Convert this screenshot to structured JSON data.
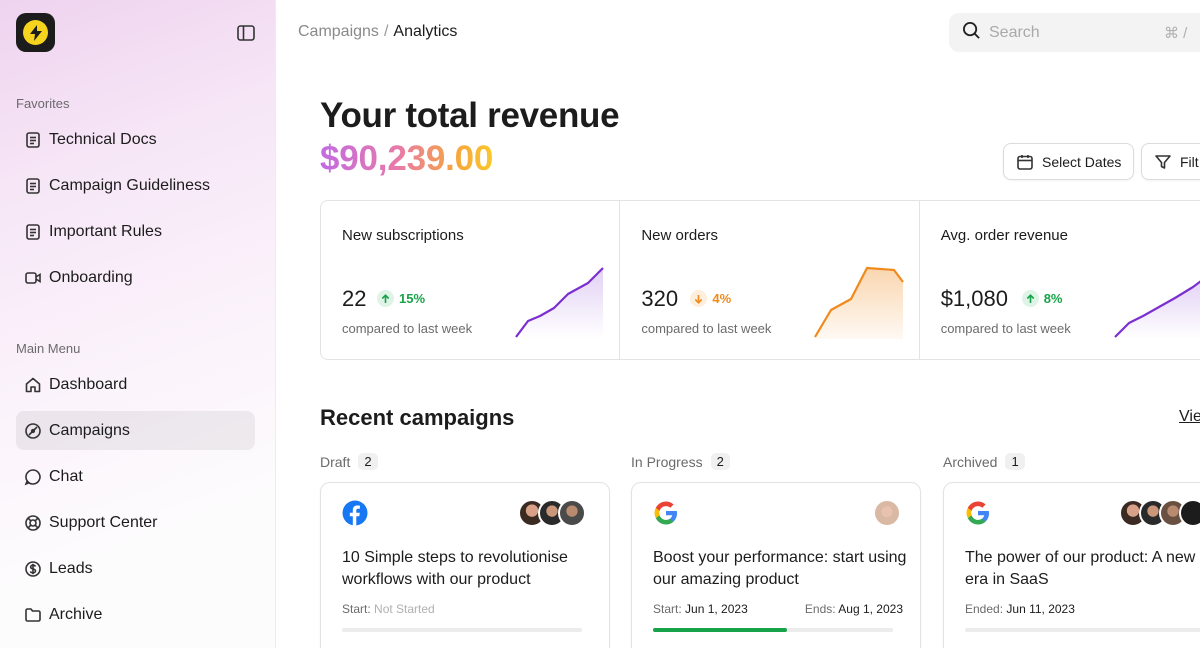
{
  "sidebar": {
    "favorites_label": "Favorites",
    "favorites": [
      {
        "label": "Technical Docs",
        "icon": "document-icon"
      },
      {
        "label": "Campaign Guideliness",
        "icon": "document-icon"
      },
      {
        "label": "Important Rules",
        "icon": "document-icon"
      },
      {
        "label": "Onboarding",
        "icon": "video-icon"
      }
    ],
    "main_menu_label": "Main Menu",
    "menu": [
      {
        "label": "Dashboard",
        "icon": "home-icon"
      },
      {
        "label": "Campaigns",
        "icon": "compass-icon",
        "active": true
      },
      {
        "label": "Chat",
        "icon": "chat-bubble-icon"
      },
      {
        "label": "Support Center",
        "icon": "lifebuoy-icon"
      },
      {
        "label": "Leads",
        "icon": "dollar-icon"
      },
      {
        "label": "Archive",
        "icon": "folder-icon"
      }
    ]
  },
  "header": {
    "breadcrumb": [
      "Campaigns",
      "Analytics"
    ],
    "breadcrumb_sep": "/",
    "search_placeholder": "Search",
    "search_shortcut": "⌘ /"
  },
  "main": {
    "title": "Your total revenue",
    "revenue": "$90,239.00",
    "select_dates_label": "Select Dates",
    "filter_label": "Filt",
    "stats": [
      {
        "label": "New subscriptions",
        "value": "22",
        "change": "15%",
        "trend": "up",
        "compare": "compared to last week"
      },
      {
        "label": "New orders",
        "value": "320",
        "change": "4%",
        "trend": "down",
        "compare": "compared to last week"
      },
      {
        "label": "Avg. order revenue",
        "value": "$1,080",
        "change": "8%",
        "trend": "up",
        "compare": "compared to last week"
      }
    ],
    "recent_title": "Recent campaigns",
    "view_all_label": "Vie",
    "columns": [
      {
        "label": "Draft",
        "count": "2",
        "card": {
          "brand": "facebook-icon",
          "title": "10 Simple steps to revolutionise workflows with our product",
          "start_label": "Start:",
          "start_value": "Not Started",
          "progress": 0
        }
      },
      {
        "label": "In Progress",
        "count": "2",
        "card": {
          "brand": "google-icon",
          "title": "Boost your performance: start using our amazing product",
          "start_label": "Start:",
          "start_value": "Jun 1, 2023",
          "end_label": "Ends:",
          "end_value": "Aug 1, 2023",
          "progress": 0.56
        }
      },
      {
        "label": "Archived",
        "count": "1",
        "card": {
          "brand": "google-icon",
          "title": "The power of our product: A new era in SaaS",
          "start_label": "Ended:",
          "start_value": "Jun 11, 2023",
          "progress": 0
        }
      }
    ]
  },
  "colors": {
    "up": "#17a34a",
    "down": "#f08a1c",
    "purple_line": "#7b2fd0",
    "orange_line": "#f08a1c",
    "logo_yellow": "#f6d31c"
  }
}
